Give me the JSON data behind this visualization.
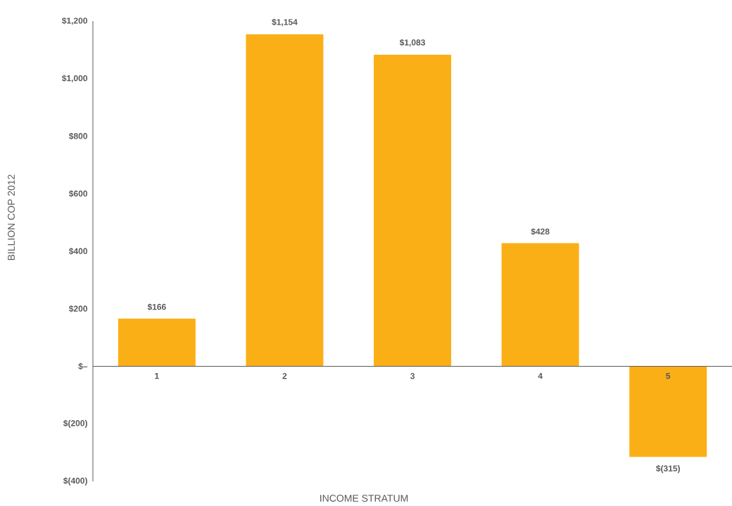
{
  "chart_data": {
    "type": "bar",
    "xlabel": "INCOME STRATUM",
    "ylabel": "BILLION COP 2012",
    "categories": [
      "1",
      "2",
      "3",
      "4",
      "5"
    ],
    "values": [
      166,
      1154,
      1083,
      428,
      -315
    ],
    "value_labels": [
      "$166",
      "$1,154",
      "$1,083",
      "$428",
      "$(315)"
    ],
    "color": "#fbaf17",
    "ylim": [
      -400,
      1200
    ],
    "yticks": [
      {
        "value": -400,
        "label": "$(400)"
      },
      {
        "value": -200,
        "label": "$(200)"
      },
      {
        "value": 0,
        "label": "$–"
      },
      {
        "value": 200,
        "label": "$200"
      },
      {
        "value": 400,
        "label": "$400"
      },
      {
        "value": 600,
        "label": "$600"
      },
      {
        "value": 800,
        "label": "$800"
      },
      {
        "value": 1000,
        "label": "$1,000"
      },
      {
        "value": 1200,
        "label": "$1,200"
      }
    ],
    "grid": false
  }
}
